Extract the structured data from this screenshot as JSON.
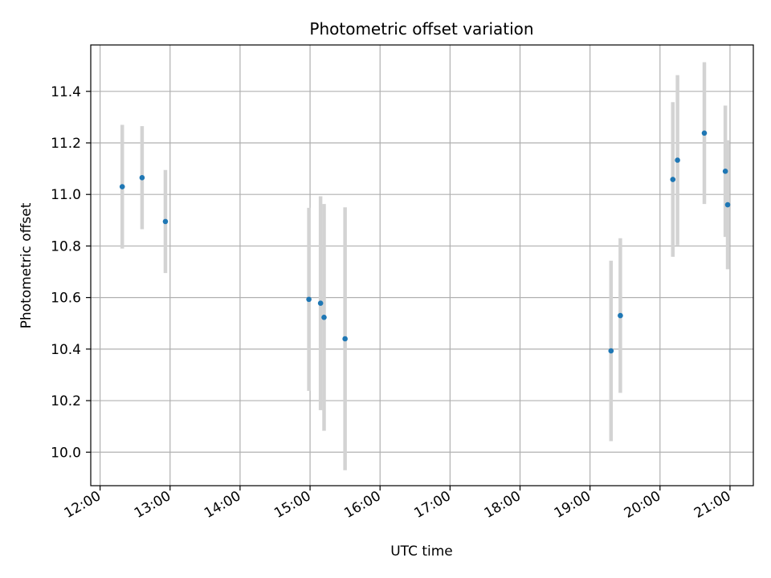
{
  "chart_data": {
    "type": "scatter",
    "title": "Photometric offset variation",
    "xlabel": "UTC time",
    "ylabel": "Photometric offset",
    "x_ticks": [
      "12:00",
      "13:00",
      "14:00",
      "15:00",
      "16:00",
      "17:00",
      "18:00",
      "19:00",
      "20:00",
      "21:00"
    ],
    "y_ticks": [
      "10.0",
      "10.2",
      "10.4",
      "10.6",
      "10.8",
      "11.0",
      "11.2",
      "11.4"
    ],
    "xlim": [
      "11:52",
      "21:20"
    ],
    "ylim": [
      9.87,
      11.58
    ],
    "grid": true,
    "point_color": "#1f77b4",
    "errorbar_color": "#d3d3d3",
    "points": [
      {
        "x": "12:19",
        "y": 11.03,
        "err": 0.24
      },
      {
        "x": "12:36",
        "y": 11.065,
        "err": 0.2
      },
      {
        "x": "12:56",
        "y": 10.895,
        "err": 0.2
      },
      {
        "x": "14:59",
        "y": 10.593,
        "err": 0.355
      },
      {
        "x": "15:09",
        "y": 10.578,
        "err": 0.415
      },
      {
        "x": "15:12",
        "y": 10.523,
        "err": 0.44
      },
      {
        "x": "15:30",
        "y": 10.44,
        "err": 0.51
      },
      {
        "x": "19:18",
        "y": 10.393,
        "err": 0.35
      },
      {
        "x": "19:26",
        "y": 10.53,
        "err": 0.3
      },
      {
        "x": "20:11",
        "y": 11.058,
        "err": 0.3
      },
      {
        "x": "20:15",
        "y": 11.133,
        "err": 0.33
      },
      {
        "x": "20:38",
        "y": 11.238,
        "err": 0.275
      },
      {
        "x": "20:56",
        "y": 11.09,
        "err": 0.255
      },
      {
        "x": "20:58",
        "y": 10.96,
        "err": 0.25
      }
    ]
  }
}
